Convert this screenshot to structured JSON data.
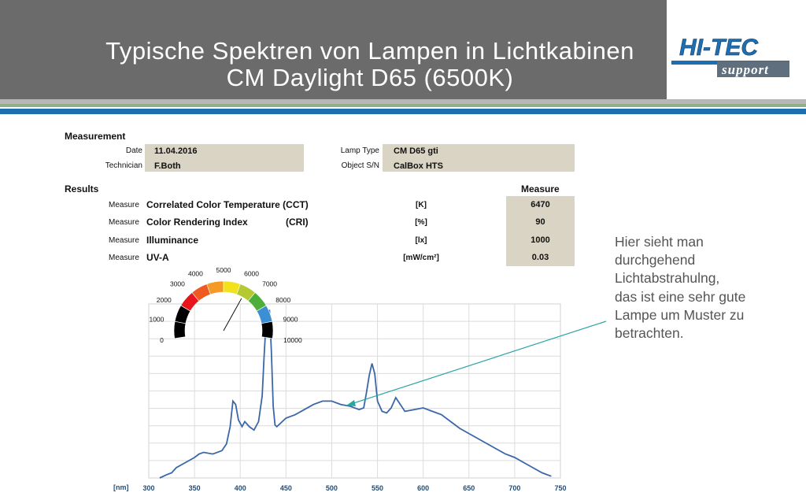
{
  "slide": {
    "title_line1": "Typische Spektren von Lampen in Lichtkabinen",
    "title_line2": "CM Daylight D65 (6500K)",
    "logo_top": "HI-TEC",
    "logo_bottom": "support",
    "annotation": [
      "Hier sieht man",
      "durchgehend",
      "Lichtabstrahulng,",
      "das ist eine sehr gute",
      "Lampe um Muster zu",
      "betrachten."
    ]
  },
  "report": {
    "measurement_heading": "Measurement",
    "date_label": "Date",
    "date_value": "11.04.2016",
    "technician_label": "Technician",
    "technician_value": "F.Both",
    "lamp_type_label": "Lamp Type",
    "lamp_type_value": "CM D65 gti",
    "object_label": "Object S/N",
    "object_value": "CalBox HTS",
    "results_heading": "Results",
    "measure_header": "Measure",
    "rows": [
      {
        "prefix": "Measure",
        "name": "Correlated Color Temperature (CCT)",
        "abbr": "",
        "unit": "[K]",
        "value": "6470"
      },
      {
        "prefix": "Measure",
        "name": "Color Rendering Index",
        "abbr": "(CRI)",
        "unit": "[%]",
        "value": "90"
      },
      {
        "prefix": "Measure",
        "name": "Illuminance",
        "abbr": "",
        "unit": "[lx]",
        "value": "1000"
      },
      {
        "prefix": "Measure",
        "name": "UV-A",
        "abbr": "",
        "unit": "[mW/cm²]",
        "value": "0.03"
      }
    ]
  },
  "gauge": {
    "labels": [
      "0",
      "1000",
      "2000",
      "3000",
      "4000",
      "5000",
      "6000",
      "7000",
      "8000",
      "9000",
      "10000"
    ],
    "needle_value": 6470,
    "segment_colors": [
      "#000000",
      "#000000",
      "#e8151b",
      "#ef5a23",
      "#f59a24",
      "#f2e21c",
      "#b5c933",
      "#4eae3c",
      "#3d8fd4",
      "#000000",
      "#000000"
    ]
  },
  "chart_data": {
    "type": "line",
    "xlabel": "[nm]",
    "x_ticks": [
      300,
      350,
      400,
      450,
      500,
      550,
      600,
      650,
      700,
      750
    ],
    "xlim": [
      300,
      750
    ],
    "ylim": [
      0,
      1
    ],
    "grid": true,
    "line_color": "#3b67a8",
    "series": [
      {
        "x": [
          312,
          320,
          325,
          330,
          340,
          350,
          355,
          360,
          370,
          380,
          385,
          389,
          392,
          395,
          398,
          402,
          405,
          410,
          415,
          420,
          424,
          426,
          428,
          430,
          432,
          434,
          436,
          438,
          440,
          450,
          460,
          470,
          480,
          490,
          500,
          510,
          520,
          530,
          535,
          538,
          541,
          544,
          547,
          550,
          555,
          560,
          565,
          570,
          575,
          580,
          590,
          600,
          610,
          620,
          630,
          640,
          650,
          660,
          670,
          680,
          690,
          700,
          710,
          720,
          730,
          740
        ],
        "y": [
          0.0,
          0.02,
          0.03,
          0.06,
          0.09,
          0.12,
          0.14,
          0.15,
          0.14,
          0.16,
          0.2,
          0.3,
          0.45,
          0.43,
          0.34,
          0.3,
          0.33,
          0.3,
          0.28,
          0.33,
          0.48,
          0.7,
          0.9,
          0.98,
          0.98,
          0.75,
          0.42,
          0.31,
          0.3,
          0.35,
          0.37,
          0.4,
          0.43,
          0.45,
          0.45,
          0.43,
          0.42,
          0.4,
          0.41,
          0.5,
          0.6,
          0.67,
          0.61,
          0.45,
          0.39,
          0.38,
          0.41,
          0.47,
          0.43,
          0.39,
          0.4,
          0.41,
          0.39,
          0.37,
          0.33,
          0.29,
          0.26,
          0.23,
          0.2,
          0.17,
          0.14,
          0.12,
          0.09,
          0.06,
          0.03,
          0.01
        ]
      }
    ]
  }
}
